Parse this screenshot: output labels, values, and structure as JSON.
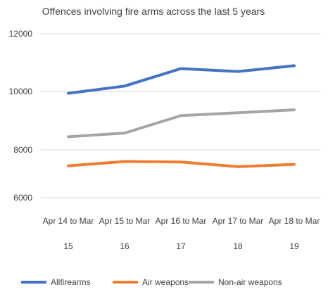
{
  "chart_data": {
    "type": "line",
    "title": "Offences involving fire arms across the last 5 years",
    "xlabel": "",
    "ylabel": "",
    "categories": [
      [
        "Apr 14 to Mar",
        "15"
      ],
      [
        "Apr 15 to Mar",
        "16"
      ],
      [
        "Apr 16 to Mar",
        "17"
      ],
      [
        "Apr 17 to Mar",
        "18"
      ],
      [
        "Apr 18 to Mar",
        "19"
      ]
    ],
    "y_ticks": [
      "12000",
      "10000",
      "8000",
      "6000"
    ],
    "ylim": [
      5500,
      12200
    ],
    "grid": true,
    "legend_position": "bottom",
    "series": [
      {
        "name": "Allfirearms",
        "color": "#4472C4",
        "values": [
          9950,
          10200,
          10800,
          10700,
          10900
        ]
      },
      {
        "name": "Air weapons",
        "color": "#ED7D31",
        "values": [
          7450,
          7600,
          7580,
          7420,
          7500
        ]
      },
      {
        "name": "Non-air weapons",
        "color": "#A5A5A5",
        "values": [
          8450,
          8580,
          9180,
          9280,
          9380
        ]
      }
    ]
  }
}
